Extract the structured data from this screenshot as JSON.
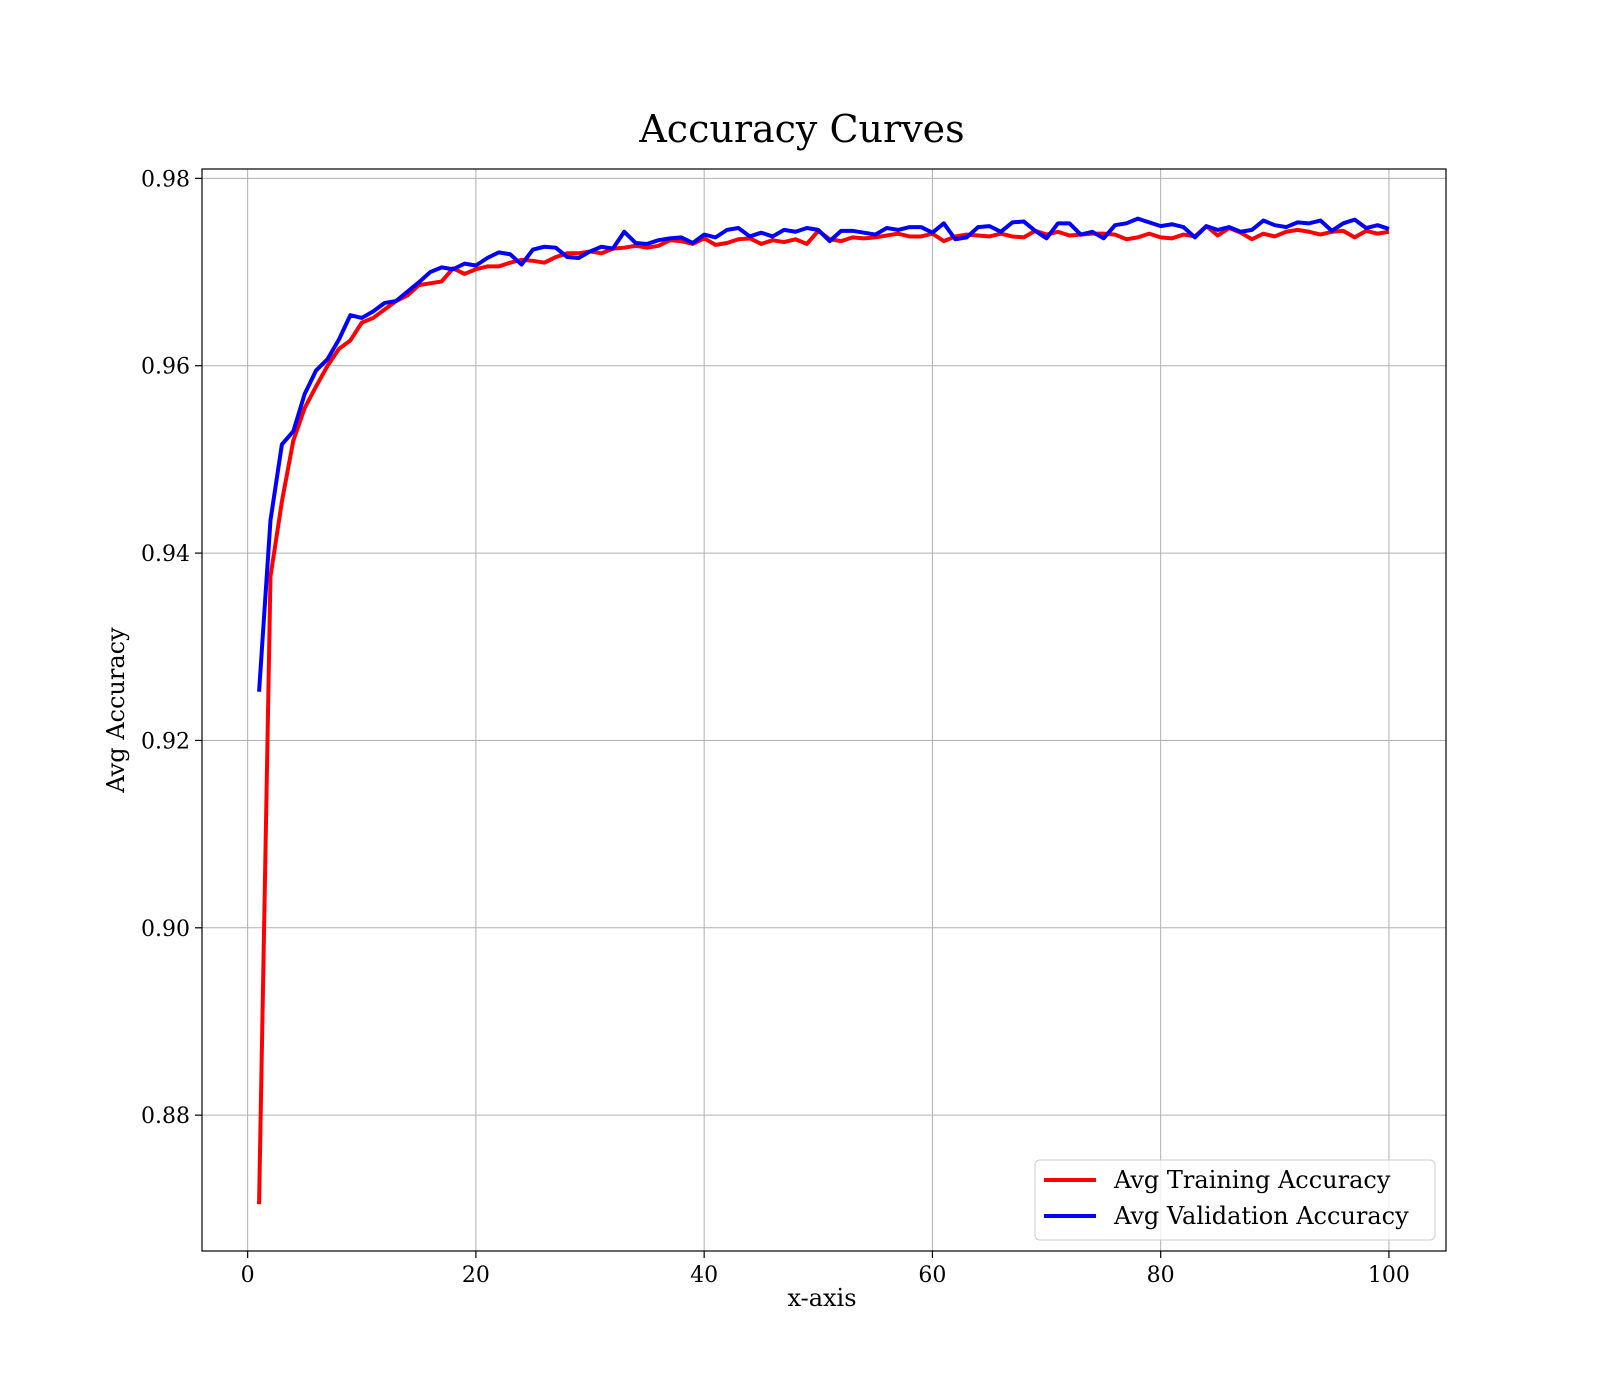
{
  "chart_data": {
    "type": "line",
    "title": "Accuracy Curves",
    "xlabel": "x-axis",
    "ylabel": "Avg Accuracy",
    "xlim": [
      -4,
      105
    ],
    "ylim": [
      0.8655,
      0.981
    ],
    "x_ticks": [
      0,
      20,
      40,
      60,
      80,
      100
    ],
    "x_tick_labels": [
      "0",
      "20",
      "40",
      "60",
      "80",
      "100"
    ],
    "y_ticks": [
      0.88,
      0.9,
      0.92,
      0.94,
      0.96,
      0.98
    ],
    "y_tick_labels": [
      "0.88",
      "0.90",
      "0.92",
      "0.94",
      "0.96",
      "0.98"
    ],
    "grid": true,
    "legend_position": "bottom-right",
    "x": [
      1,
      2,
      3,
      4,
      5,
      6,
      7,
      8,
      9,
      10,
      11,
      12,
      13,
      14,
      15,
      16,
      17,
      18,
      19,
      20,
      21,
      22,
      23,
      24,
      25,
      26,
      27,
      28,
      29,
      30,
      31,
      32,
      33,
      34,
      35,
      36,
      37,
      38,
      39,
      40,
      41,
      42,
      43,
      44,
      45,
      46,
      47,
      48,
      49,
      50,
      51,
      52,
      53,
      54,
      55,
      56,
      57,
      58,
      59,
      60,
      61,
      62,
      63,
      64,
      65,
      66,
      67,
      68,
      69,
      70,
      71,
      72,
      73,
      74,
      75,
      76,
      77,
      78,
      79,
      80,
      81,
      82,
      83,
      84,
      85,
      86,
      87,
      88,
      89,
      90,
      91,
      92,
      93,
      94,
      95,
      96,
      97,
      98,
      99,
      100
    ],
    "series": [
      {
        "name": "Avg Training Accuracy",
        "color": "#ff0000",
        "values": [
          0.8705,
          0.9375,
          0.9455,
          0.952,
          0.9555,
          0.9578,
          0.96,
          0.9618,
          0.9627,
          0.9646,
          0.9651,
          0.966,
          0.9669,
          0.9675,
          0.9686,
          0.9688,
          0.969,
          0.9704,
          0.9698,
          0.9703,
          0.9706,
          0.9706,
          0.971,
          0.9713,
          0.9712,
          0.971,
          0.9716,
          0.972,
          0.972,
          0.9722,
          0.972,
          0.9725,
          0.9726,
          0.9728,
          0.9726,
          0.9728,
          0.9734,
          0.9733,
          0.973,
          0.9736,
          0.9729,
          0.9731,
          0.9735,
          0.9736,
          0.973,
          0.9734,
          0.9732,
          0.9735,
          0.973,
          0.9744,
          0.9735,
          0.9733,
          0.9737,
          0.9736,
          0.9737,
          0.9739,
          0.9741,
          0.9738,
          0.9738,
          0.9741,
          0.9733,
          0.9738,
          0.974,
          0.9739,
          0.9738,
          0.9741,
          0.9738,
          0.9737,
          0.9744,
          0.974,
          0.9743,
          0.9739,
          0.974,
          0.9741,
          0.9741,
          0.974,
          0.9735,
          0.9737,
          0.9741,
          0.9737,
          0.9736,
          0.974,
          0.9738,
          0.9749,
          0.9739,
          0.9747,
          0.9742,
          0.9735,
          0.9741,
          0.9738,
          0.9743,
          0.9745,
          0.9743,
          0.974,
          0.9743,
          0.9744,
          0.9737,
          0.9744,
          0.9741,
          0.9743
        ]
      },
      {
        "name": "Avg Validation Accuracy",
        "color": "#0000ff",
        "values": [
          0.9252,
          0.9435,
          0.9516,
          0.953,
          0.957,
          0.9595,
          0.9607,
          0.9628,
          0.9654,
          0.9651,
          0.9658,
          0.9667,
          0.9669,
          0.9679,
          0.9689,
          0.97,
          0.9705,
          0.9703,
          0.9709,
          0.9707,
          0.9715,
          0.9721,
          0.9719,
          0.9708,
          0.9724,
          0.9727,
          0.9726,
          0.9716,
          0.9715,
          0.9722,
          0.9727,
          0.9725,
          0.9743,
          0.9731,
          0.973,
          0.9734,
          0.9736,
          0.9737,
          0.9731,
          0.974,
          0.9737,
          0.9745,
          0.9747,
          0.9738,
          0.9742,
          0.9738,
          0.9745,
          0.9743,
          0.9747,
          0.9745,
          0.9733,
          0.9744,
          0.9744,
          0.9742,
          0.974,
          0.9747,
          0.9745,
          0.9748,
          0.9748,
          0.9742,
          0.9752,
          0.9735,
          0.9737,
          0.9748,
          0.9749,
          0.9743,
          0.9753,
          0.9754,
          0.9744,
          0.9736,
          0.9752,
          0.9752,
          0.974,
          0.9743,
          0.9736,
          0.975,
          0.9752,
          0.9757,
          0.9753,
          0.9749,
          0.9751,
          0.9748,
          0.9737,
          0.9749,
          0.9745,
          0.9748,
          0.9743,
          0.9745,
          0.9755,
          0.975,
          0.9748,
          0.9753,
          0.9752,
          0.9755,
          0.9744,
          0.9752,
          0.9756,
          0.9747,
          0.975,
          0.9746
        ]
      }
    ]
  }
}
